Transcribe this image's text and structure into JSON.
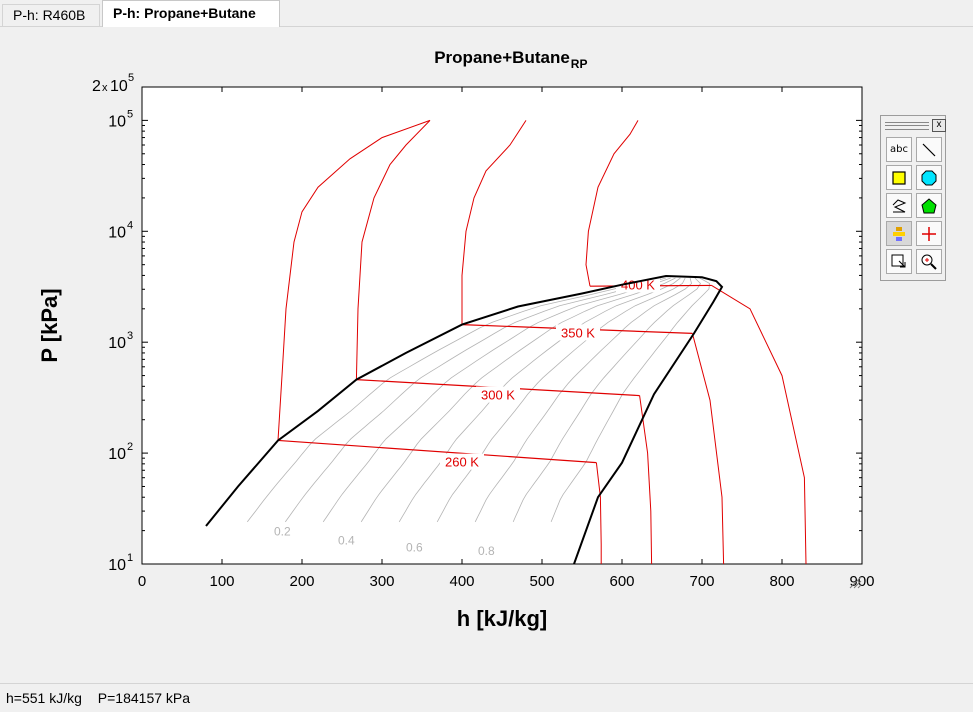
{
  "tabs": [
    {
      "label": "P-h: R460B",
      "active": false
    },
    {
      "label": "P-h: Propane+Butane",
      "active": true
    }
  ],
  "toolbar": {
    "close_label": "x",
    "tools": [
      "text-tool-icon",
      "line-tool-icon",
      "rectangle-tool-icon",
      "circle-tool-icon",
      "polyline-tool-icon",
      "polygon-tool-icon",
      "move-tool-icon",
      "crosshair-tool-icon",
      "export-tool-icon",
      "zoom-tool-icon"
    ],
    "abc_label": "abc"
  },
  "status": {
    "h_text": "h=551 kJ/kg",
    "p_text": "P=184157 kPa"
  },
  "colors": {
    "isotherm": "#e00000",
    "dome": "#000000",
    "quality": "#b4b4b4",
    "background": "#ffffff"
  },
  "chart_data": {
    "type": "line",
    "title": "Propane+Butane",
    "title_subscript": "RP",
    "xlabel": "h [kJ/kg]",
    "ylabel": "P [kPa]",
    "xlim": [
      0,
      900
    ],
    "ylim": [
      10,
      200000
    ],
    "yscale": "log",
    "x_ticks": [
      "0",
      "100",
      "200",
      "300",
      "400",
      "500",
      "600",
      "700",
      "800",
      "900"
    ],
    "y_ticks": [
      {
        "base": "10",
        "exp": "1",
        "value": 10
      },
      {
        "base": "10",
        "exp": "2",
        "value": 100
      },
      {
        "base": "10",
        "exp": "3",
        "value": 1000
      },
      {
        "base": "10",
        "exp": "4",
        "value": 10000
      },
      {
        "base": "10",
        "exp": "5",
        "value": 100000
      }
    ],
    "y_top_label": {
      "prefix": "2",
      "mult": "x",
      "base": "10",
      "exp": "5"
    },
    "dome": {
      "x": [
        80,
        120,
        170,
        220,
        268,
        330,
        400,
        470,
        550,
        600,
        655,
        700,
        718,
        725,
        714,
        690,
        640,
        600,
        570,
        540
      ],
      "y": [
        22,
        50,
        130,
        240,
        460,
        800,
        1440,
        2100,
        2750,
        3300,
        3950,
        3850,
        3550,
        3150,
        2300,
        1200,
        340,
        82,
        40,
        10
      ]
    },
    "isotherms": [
      {
        "label": "260 K",
        "x": [
          170,
          175,
          180,
          190,
          200,
          220,
          260,
          300,
          360
        ],
        "y": [
          130,
          500,
          2000,
          8000,
          15000,
          25000,
          45000,
          70000,
          100000
        ],
        "twophase_end": [
          568,
          82
        ],
        "vapor_x": [
          568,
          573,
          574,
          574
        ],
        "vapor_y": [
          82,
          40,
          15,
          10
        ],
        "label_pos": [
          400,
          82
        ]
      },
      {
        "label": "300 K",
        "x": [
          268,
          270,
          275,
          290,
          310,
          330,
          360
        ],
        "y": [
          460,
          2000,
          8000,
          20000,
          40000,
          60000,
          100000
        ],
        "twophase_end": [
          622,
          330
        ],
        "vapor_x": [
          622,
          632,
          636,
          637
        ],
        "vapor_y": [
          330,
          100,
          30,
          10
        ],
        "label_pos": [
          445,
          330
        ]
      },
      {
        "label": "350 K",
        "x": [
          400,
          400,
          405,
          415,
          430,
          460,
          480
        ],
        "y": [
          1440,
          4000,
          10000,
          20000,
          35000,
          60000,
          100000
        ],
        "twophase_end": [
          688,
          1200
        ],
        "vapor_x": [
          688,
          710,
          725,
          727
        ],
        "vapor_y": [
          1200,
          300,
          40,
          10
        ],
        "label_pos": [
          545,
          1200
        ]
      },
      {
        "label": "400 K",
        "x": [
          560,
          555,
          558,
          570,
          590,
          610,
          620
        ],
        "y": [
          3200,
          5000,
          10000,
          25000,
          50000,
          75000,
          100000
        ],
        "twophase_end": [
          712,
          3250
        ],
        "vapor_x": [
          712,
          760,
          800,
          828,
          830
        ],
        "vapor_y": [
          3250,
          2000,
          500,
          60,
          10
        ],
        "label_pos": [
          620,
          3250
        ]
      }
    ],
    "quality_lines": [
      {
        "label": "0.2",
        "label_pos": [
          165,
          18
        ]
      },
      {
        "label": "0.4",
        "label_pos": [
          245,
          15
        ]
      },
      {
        "label": "0.6",
        "label_pos": [
          330,
          13
        ]
      },
      {
        "label": "0.8",
        "label_pos": [
          420,
          12
        ]
      }
    ],
    "grid": false,
    "legend": "none"
  }
}
